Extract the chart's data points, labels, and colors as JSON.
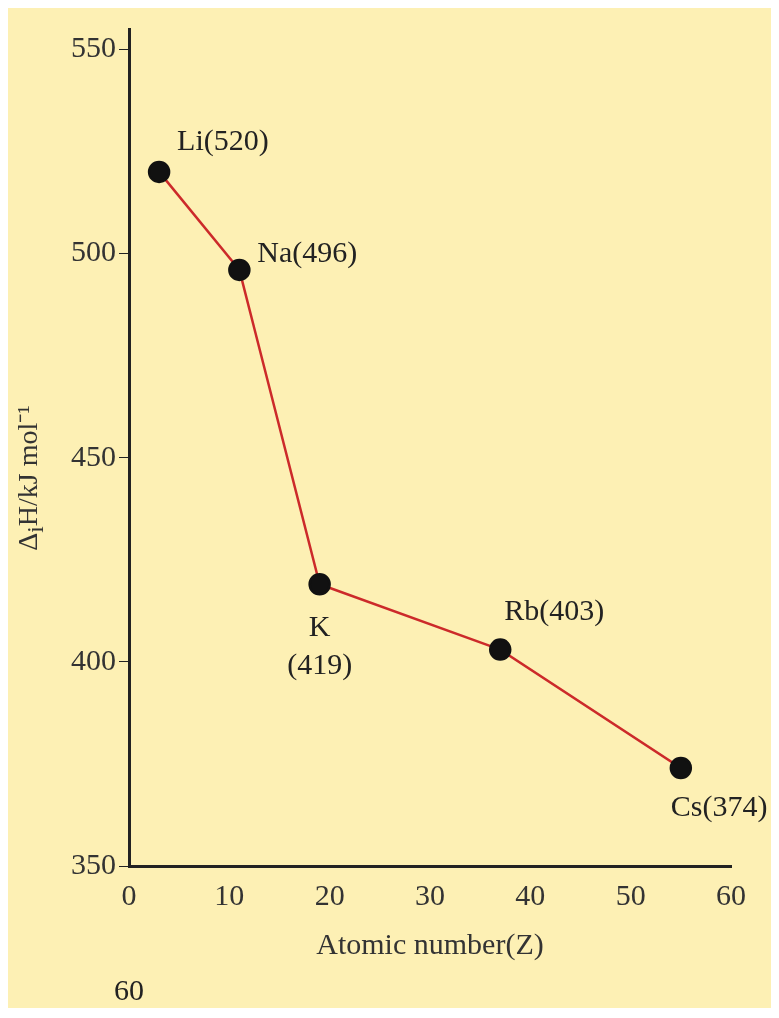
{
  "chart_data": {
    "type": "line",
    "xlabel": "Atomic number(Z)",
    "ylabel": "Δ$_{i}$H/kJ mol⁻¹",
    "x": [
      3,
      11,
      19,
      37,
      55
    ],
    "series": [
      {
        "color": "#cc2a2a",
        "values": [
          520,
          496,
          419,
          403,
          374
        ],
        "value_labels": [
          "Li(520)",
          "Na(496)",
          "K\n(419)",
          "Rb(403)",
          "Cs(374)"
        ]
      }
    ],
    "xlim": [
      0,
      60
    ],
    "xticks": [
      0,
      10,
      20,
      30,
      40,
      50,
      60
    ],
    "ylim": [
      350,
      555
    ],
    "yticks": [
      350,
      400,
      450,
      500,
      550
    ],
    "grid": false,
    "legend": false,
    "marker": "circle",
    "line_style": "solid",
    "annotations": [
      "60"
    ]
  }
}
